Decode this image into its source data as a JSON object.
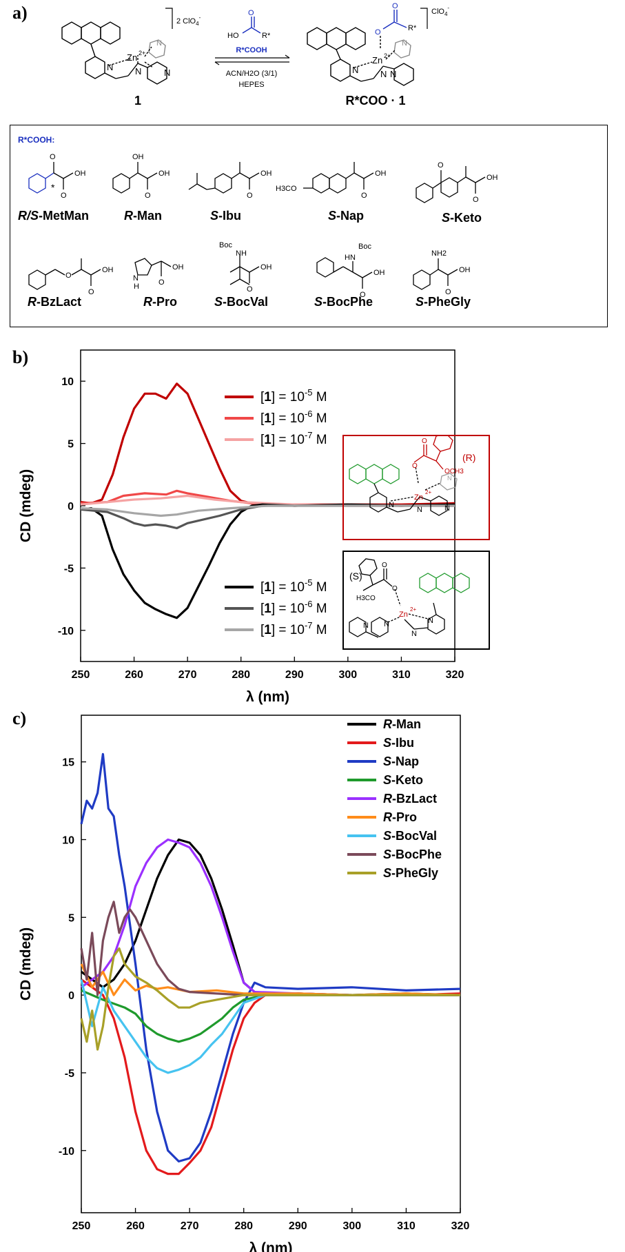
{
  "panels": {
    "a": "a)",
    "b": "b)",
    "c": "c)"
  },
  "scheme": {
    "complex1_label": "1",
    "complex1_charge": "2 ClO",
    "complex1_charge_sub": "4",
    "complex1_charge_sup": "-",
    "product_label": "R*COO · 1",
    "product_charge": "ClO",
    "product_charge_sub": "4",
    "product_charge_sup": "-",
    "reagent_formula": "R*COOH",
    "reagent_ho": "HO",
    "reagent_r": "R*",
    "conditions_solvent": "ACN/H2O (3/1)",
    "conditions_buffer": "HEPES",
    "zn": "Zn",
    "zn_charge": "2+",
    "atom_N": "N",
    "atom_O": "O"
  },
  "acids_box": {
    "title": "R*COOH:",
    "row1": [
      {
        "prefix": "R/S",
        "suffix": "-MetMan"
      },
      {
        "prefix": "R",
        "suffix": "-Man"
      },
      {
        "prefix": "S",
        "suffix": "-Ibu"
      },
      {
        "prefix": "S",
        "suffix": "-Nap"
      },
      {
        "prefix": "S",
        "suffix": "-Keto"
      }
    ],
    "row2": [
      {
        "prefix": "R",
        "suffix": "-BzLact"
      },
      {
        "prefix": "R",
        "suffix": "-Pro"
      },
      {
        "prefix": "S",
        "suffix": "-BocVal"
      },
      {
        "prefix": "S",
        "suffix": "-BocPhe"
      },
      {
        "prefix": "S",
        "suffix": "-PheGly"
      }
    ],
    "atom_labels": {
      "oh": "OH",
      "o": "O",
      "h3co": "H3CO",
      "boc": "Boc",
      "nh": "NH",
      "hn": "HN",
      "nh2": "NH2",
      "n_h": "N",
      "h": "H",
      "star": "*"
    }
  },
  "inset_b": {
    "r_label": "(R)",
    "s_label": "(S)",
    "och3": "OCH3",
    "h3co": "H3CO"
  },
  "chart_data": [
    {
      "id": "b",
      "type": "line",
      "xlabel": "λ (nm)",
      "ylabel": "CD (mdeg)",
      "xlim": [
        250,
        320
      ],
      "ylim": [
        -12.5,
        12.5
      ],
      "xticks": [
        250,
        260,
        270,
        280,
        290,
        300,
        310,
        320
      ],
      "yticks": [
        -10,
        -5,
        0,
        5,
        10
      ],
      "legend_top": [
        {
          "name": "[1] = 10-5 M",
          "lead": "[",
          "bold": "1",
          "mid": "] = 10",
          "exp": "-5",
          "tail": " M",
          "color": "#c00000"
        },
        {
          "name": "[1] = 10-6 M",
          "lead": "[",
          "bold": "1",
          "mid": "] = 10",
          "exp": "-6",
          "tail": " M",
          "color": "#f04848"
        },
        {
          "name": "[1] = 10-7 M",
          "lead": "[",
          "bold": "1",
          "mid": "] = 10",
          "exp": "-7",
          "tail": " M",
          "color": "#f5a3a3"
        }
      ],
      "legend_bottom": [
        {
          "name": "[1] = 10-5 M",
          "lead": "[",
          "bold": "1",
          "mid": "] = 10",
          "exp": "-5",
          "tail": " M",
          "color": "#000000"
        },
        {
          "name": "[1] = 10-6 M",
          "lead": "[",
          "bold": "1",
          "mid": "] = 10",
          "exp": "-6",
          "tail": " M",
          "color": "#555555"
        },
        {
          "name": "[1] = 10-7 M",
          "lead": "[",
          "bold": "1",
          "mid": "] = 10",
          "exp": "-7",
          "tail": " M",
          "color": "#a6a6a6"
        }
      ],
      "series": [
        {
          "name": "R, [1] = 10-5 M",
          "color": "#c00000",
          "x": [
            250,
            252,
            254,
            256,
            258,
            260,
            262,
            264,
            266,
            268,
            270,
            272,
            274,
            276,
            278,
            280,
            282,
            284,
            286,
            290,
            300,
            310,
            320
          ],
          "y": [
            0.3,
            0.2,
            0.5,
            2.5,
            5.5,
            7.8,
            9.0,
            9.0,
            8.6,
            9.8,
            9.0,
            7.0,
            5.0,
            3.0,
            1.2,
            0.4,
            0.2,
            0.0,
            0.1,
            0.0,
            0.1,
            0.1,
            0.2
          ]
        },
        {
          "name": "R, [1] = 10-6 M",
          "color": "#f04848",
          "x": [
            250,
            255,
            258,
            262,
            266,
            268,
            270,
            274,
            278,
            282,
            290,
            300,
            310,
            320
          ],
          "y": [
            0.2,
            0.3,
            0.8,
            1.0,
            0.9,
            1.2,
            1.0,
            0.7,
            0.4,
            0.2,
            0.1,
            0.1,
            0.0,
            0.1
          ]
        },
        {
          "name": "R, [1] = 10-7 M",
          "color": "#f5a3a3",
          "x": [
            250,
            255,
            260,
            265,
            270,
            275,
            280,
            290,
            300,
            310,
            320
          ],
          "y": [
            0.1,
            0.3,
            0.5,
            0.6,
            0.8,
            0.5,
            0.3,
            0.1,
            0.0,
            0.0,
            0.0
          ]
        },
        {
          "name": "S, [1] = 10-5 M",
          "color": "#000000",
          "x": [
            250,
            252,
            254,
            256,
            258,
            260,
            262,
            264,
            266,
            268,
            270,
            272,
            274,
            276,
            278,
            280,
            282,
            284,
            290,
            300,
            310,
            320
          ],
          "y": [
            -0.3,
            -0.2,
            -0.8,
            -3.5,
            -5.5,
            -6.8,
            -7.8,
            -8.3,
            -8.7,
            -9.0,
            -8.2,
            -6.5,
            -4.8,
            -3.0,
            -1.5,
            -0.5,
            0.0,
            0.1,
            0.0,
            0.1,
            0.0,
            0.1
          ]
        },
        {
          "name": "S, [1] = 10-6 M",
          "color": "#555555",
          "x": [
            250,
            255,
            258,
            260,
            262,
            264,
            266,
            268,
            270,
            272,
            276,
            280,
            284,
            290,
            300,
            320
          ],
          "y": [
            -0.3,
            -0.5,
            -1.0,
            -1.4,
            -1.6,
            -1.5,
            -1.6,
            -1.8,
            -1.4,
            -1.2,
            -0.8,
            -0.3,
            0.0,
            0.0,
            0.0,
            0.0
          ]
        },
        {
          "name": "S, [1] = 10-7 M",
          "color": "#a6a6a6",
          "x": [
            250,
            255,
            260,
            265,
            268,
            272,
            278,
            285,
            300,
            320
          ],
          "y": [
            -0.2,
            -0.3,
            -0.6,
            -0.8,
            -0.7,
            -0.4,
            -0.2,
            0.0,
            0.0,
            0.0
          ]
        }
      ]
    },
    {
      "id": "c",
      "type": "line",
      "xlabel": "λ (nm)",
      "ylabel": "CD (mdeg)",
      "xlim": [
        250,
        320
      ],
      "ylim": [
        -14,
        18
      ],
      "xticks": [
        250,
        260,
        270,
        280,
        290,
        300,
        310,
        320
      ],
      "yticks": [
        -10,
        -5,
        0,
        5,
        10,
        15
      ],
      "series": [
        {
          "name": "R-Man",
          "prefix": "R",
          "suffix": "-Man",
          "color": "#000000",
          "x": [
            250,
            252,
            254,
            256,
            258,
            260,
            262,
            264,
            266,
            268,
            270,
            272,
            274,
            276,
            278,
            280,
            282,
            284,
            290,
            300,
            310,
            320
          ],
          "y": [
            1.5,
            1.0,
            0.5,
            1.0,
            2.0,
            3.5,
            5.5,
            7.5,
            9.0,
            10.0,
            9.8,
            9.0,
            7.5,
            5.5,
            3.2,
            0.8,
            0.2,
            0.0,
            0.1,
            0.0,
            0.1,
            0.0
          ]
        },
        {
          "name": "S-Ibu",
          "prefix": "S",
          "suffix": "-Ibu",
          "color": "#e31a1c",
          "x": [
            250,
            252,
            254,
            256,
            258,
            260,
            262,
            264,
            266,
            268,
            270,
            272,
            274,
            276,
            278,
            280,
            282,
            284,
            290,
            300,
            310,
            320
          ],
          "y": [
            1.0,
            0.5,
            0.0,
            -1.5,
            -4.0,
            -7.5,
            -10.0,
            -11.2,
            -11.5,
            -11.5,
            -10.8,
            -10.0,
            -8.5,
            -6.0,
            -3.5,
            -1.5,
            -0.5,
            0.0,
            0.1,
            0.0,
            0.0,
            0.1
          ]
        },
        {
          "name": "S-Nap",
          "prefix": "S",
          "suffix": "-Nap",
          "color": "#1f3bc4",
          "x": [
            250,
            251,
            252,
            253,
            254,
            255,
            256,
            257,
            258,
            260,
            262,
            264,
            266,
            268,
            270,
            272,
            274,
            276,
            278,
            280,
            282,
            284,
            290,
            300,
            310,
            320
          ],
          "y": [
            11.0,
            12.5,
            12.0,
            13.0,
            15.5,
            12.0,
            11.5,
            9.0,
            7.0,
            2.0,
            -3.5,
            -7.5,
            -10.0,
            -10.7,
            -10.5,
            -9.5,
            -7.5,
            -5.0,
            -2.5,
            -0.5,
            0.8,
            0.5,
            0.4,
            0.5,
            0.3,
            0.4
          ]
        },
        {
          "name": "S-Keto",
          "prefix": "S",
          "suffix": "-Keto",
          "color": "#1f9a2c",
          "x": [
            250,
            254,
            258,
            260,
            262,
            264,
            266,
            268,
            270,
            272,
            274,
            276,
            278,
            280,
            284,
            290,
            300,
            320
          ],
          "y": [
            0.3,
            -0.3,
            -0.8,
            -1.2,
            -2.0,
            -2.5,
            -2.8,
            -3.0,
            -2.8,
            -2.5,
            -2.0,
            -1.5,
            -0.8,
            -0.3,
            0.0,
            0.0,
            0.0,
            0.0
          ]
        },
        {
          "name": "R-BzLact",
          "prefix": "R",
          "suffix": "-BzLact",
          "color": "#9b30ff",
          "x": [
            250,
            252,
            254,
            256,
            258,
            260,
            262,
            264,
            266,
            268,
            270,
            272,
            274,
            276,
            278,
            280,
            282,
            290,
            300,
            320
          ],
          "y": [
            0.5,
            1.0,
            1.5,
            2.5,
            4.5,
            7.0,
            8.5,
            9.5,
            10.0,
            9.8,
            9.5,
            8.5,
            7.0,
            5.0,
            2.8,
            0.8,
            0.2,
            0.1,
            0.0,
            0.0
          ]
        },
        {
          "name": "R-Pro",
          "prefix": "R",
          "suffix": "-Pro",
          "color": "#ff8c1a",
          "x": [
            250,
            252,
            254,
            256,
            258,
            260,
            262,
            264,
            266,
            270,
            275,
            280,
            290,
            300,
            310,
            320
          ],
          "y": [
            2.0,
            0.5,
            1.5,
            0.0,
            1.0,
            0.3,
            0.6,
            0.4,
            0.5,
            0.2,
            0.3,
            0.1,
            0.1,
            0.0,
            0.1,
            0.0
          ]
        },
        {
          "name": "S-BocVal",
          "prefix": "S",
          "suffix": "-BocVal",
          "color": "#46c3f0",
          "x": [
            250,
            252,
            254,
            256,
            258,
            260,
            262,
            264,
            266,
            268,
            270,
            272,
            274,
            276,
            278,
            280,
            284,
            290,
            300,
            320
          ],
          "y": [
            1.0,
            -2.0,
            0.5,
            -1.0,
            -2.0,
            -3.0,
            -4.0,
            -4.7,
            -5.0,
            -4.8,
            -4.5,
            -4.0,
            -3.2,
            -2.5,
            -1.5,
            -0.5,
            0.0,
            0.0,
            0.0,
            0.0
          ]
        },
        {
          "name": "S-BocPhe",
          "prefix": "S",
          "suffix": "-BocPhe",
          "color": "#7b4a5a",
          "x": [
            250,
            251,
            252,
            253,
            254,
            255,
            256,
            257,
            258,
            259,
            260,
            262,
            264,
            266,
            268,
            270,
            275,
            280,
            290,
            300,
            320
          ],
          "y": [
            3.0,
            1.0,
            4.0,
            0.0,
            3.5,
            5.0,
            6.0,
            4.0,
            5.0,
            5.5,
            5.0,
            3.5,
            2.0,
            1.0,
            0.4,
            0.2,
            0.1,
            0.0,
            0.0,
            0.0,
            0.0
          ]
        },
        {
          "name": "S-PheGly",
          "prefix": "S",
          "suffix": "-PheGly",
          "color": "#a8a028",
          "x": [
            250,
            251,
            252,
            253,
            254,
            255,
            256,
            257,
            258,
            260,
            262,
            264,
            266,
            268,
            270,
            272,
            275,
            280,
            290,
            300,
            320
          ],
          "y": [
            -1.5,
            -3.0,
            -1.0,
            -3.5,
            -2.0,
            0.5,
            2.5,
            3.0,
            2.0,
            1.2,
            0.8,
            0.3,
            -0.3,
            -0.8,
            -0.8,
            -0.5,
            -0.3,
            0.0,
            0.0,
            0.0,
            0.0
          ]
        }
      ]
    }
  ]
}
